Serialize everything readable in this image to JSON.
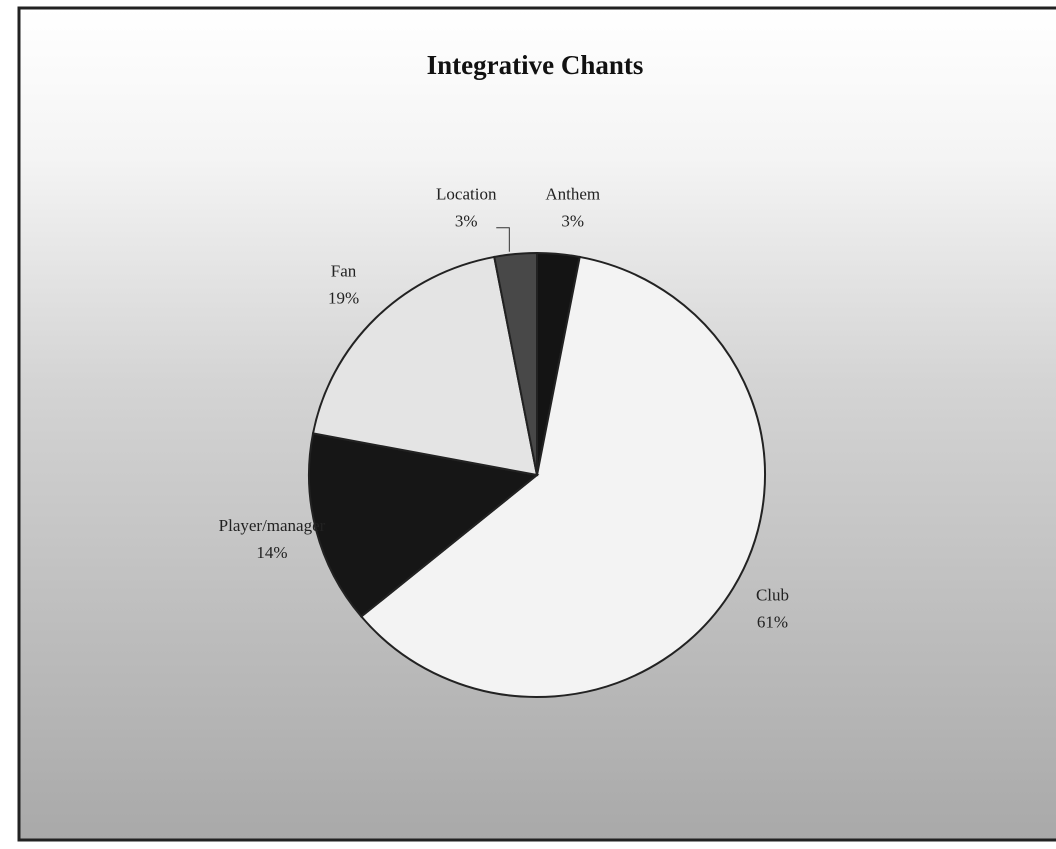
{
  "chart_data": {
    "type": "pie",
    "title": "Integrative Chants",
    "categories": [
      "Anthem",
      "Club",
      "Player/manager",
      "Fan",
      "Location"
    ],
    "values": [
      3,
      61,
      14,
      19,
      3
    ],
    "value_labels": [
      "3%",
      "61%",
      "14%",
      "19%",
      "3%"
    ],
    "colors": [
      "#141414",
      "#f3f3f3",
      "#161616",
      "#e4e4e4",
      "#484848"
    ]
  }
}
